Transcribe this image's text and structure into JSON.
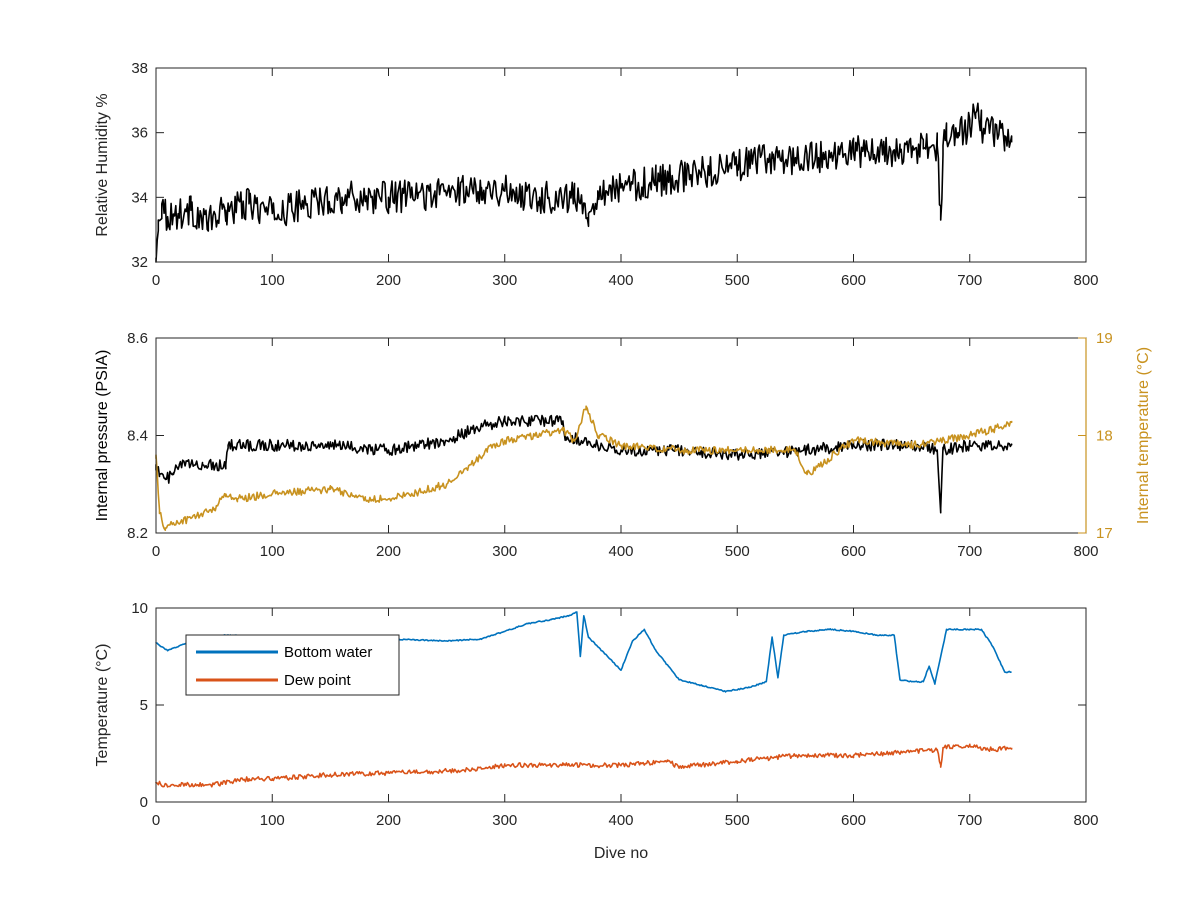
{
  "figure": {
    "xlabel": "Dive no"
  },
  "chart_data": [
    {
      "type": "line",
      "xlim": [
        0,
        800
      ],
      "xticks": [
        0,
        100,
        200,
        300,
        400,
        500,
        600,
        700,
        800
      ],
      "ylabel": "Relative Humidity %",
      "ylim": [
        32,
        38
      ],
      "yticks": [
        32,
        34,
        36,
        38
      ],
      "legend": "none",
      "series": [
        {
          "color": "#000000",
          "noise": 0.5,
          "x": [
            0,
            2,
            5,
            10,
            20,
            30,
            45,
            60,
            80,
            100,
            130,
            160,
            200,
            240,
            280,
            300,
            330,
            360,
            372,
            380,
            400,
            430,
            460,
            500,
            530,
            560,
            600,
            640,
            660,
            672,
            675,
            677,
            680,
            690,
            700,
            705,
            710,
            720,
            730,
            736
          ],
          "y": [
            32.0,
            33.3,
            33.8,
            33.4,
            33.5,
            33.6,
            33.2,
            33.6,
            33.8,
            33.5,
            33.8,
            34.0,
            34.0,
            34.1,
            34.3,
            34.2,
            34.0,
            34.0,
            33.5,
            34.2,
            34.3,
            34.5,
            34.7,
            35.0,
            35.2,
            35.2,
            35.4,
            35.4,
            35.5,
            35.6,
            33.3,
            35.6,
            35.8,
            36.0,
            36.2,
            36.6,
            36.2,
            36.0,
            35.9,
            35.7
          ]
        }
      ]
    },
    {
      "type": "line",
      "xlim": [
        0,
        800
      ],
      "xticks": [
        0,
        100,
        200,
        300,
        400,
        500,
        600,
        700,
        800
      ],
      "ylabel": "Internal pressure (PSIA)",
      "ylim": [
        8.2,
        8.6
      ],
      "yticks": [
        8.2,
        8.4,
        8.6
      ],
      "y2label": "Internal temperature (°C)",
      "y2lim": [
        17,
        19
      ],
      "y2ticks": [
        17,
        18,
        19
      ],
      "legend": "none",
      "series": [
        {
          "axis": "left",
          "color": "#000000",
          "noise": 0.012,
          "x": [
            0,
            3,
            8,
            15,
            20,
            40,
            45,
            60,
            62,
            100,
            150,
            200,
            250,
            280,
            300,
            350,
            352,
            380,
            400,
            450,
            500,
            560,
            600,
            650,
            672,
            675,
            677,
            700,
            736
          ],
          "y": [
            8.34,
            8.32,
            8.31,
            8.32,
            8.34,
            8.34,
            8.34,
            8.34,
            8.38,
            8.38,
            8.38,
            8.37,
            8.39,
            8.42,
            8.43,
            8.43,
            8.4,
            8.38,
            8.37,
            8.37,
            8.36,
            8.37,
            8.38,
            8.38,
            8.37,
            8.25,
            8.37,
            8.38,
            8.38
          ]
        },
        {
          "axis": "right",
          "color": "#c8921f",
          "noise": 0.04,
          "x": [
            0,
            3,
            8,
            15,
            30,
            50,
            60,
            70,
            100,
            150,
            180,
            200,
            220,
            250,
            270,
            285,
            300,
            350,
            360,
            370,
            380,
            400,
            450,
            500,
            550,
            560,
            600,
            650,
            700,
            730,
            736
          ],
          "y": [
            17.8,
            17.2,
            17.05,
            17.1,
            17.15,
            17.25,
            17.4,
            17.35,
            17.4,
            17.45,
            17.35,
            17.35,
            17.4,
            17.5,
            17.7,
            17.85,
            17.95,
            18.05,
            17.95,
            18.3,
            18.0,
            17.9,
            17.85,
            17.85,
            17.85,
            17.6,
            17.95,
            17.9,
            18.0,
            18.1,
            18.15
          ]
        }
      ]
    },
    {
      "type": "line",
      "xlim": [
        0,
        800
      ],
      "xticks": [
        0,
        100,
        200,
        300,
        400,
        500,
        600,
        700,
        800
      ],
      "xlabel": "Dive no",
      "ylabel": "Temperature (°C)",
      "ylim": [
        0,
        10
      ],
      "yticks": [
        0,
        5,
        10
      ],
      "legend": "top-left",
      "series": [
        {
          "name": "Bottom water",
          "color": "#0072bd",
          "noise": 0.03,
          "x": [
            0,
            10,
            30,
            60,
            100,
            150,
            200,
            250,
            280,
            300,
            320,
            340,
            355,
            362,
            365,
            368,
            372,
            380,
            400,
            410,
            420,
            430,
            450,
            470,
            490,
            510,
            525,
            530,
            535,
            540,
            560,
            580,
            600,
            620,
            635,
            640,
            650,
            660,
            665,
            670,
            680,
            700,
            710,
            720,
            730,
            736
          ],
          "y": [
            8.2,
            7.8,
            8.3,
            8.6,
            8.5,
            8.4,
            8.4,
            8.3,
            8.4,
            8.8,
            9.2,
            9.4,
            9.6,
            9.8,
            7.5,
            9.6,
            8.5,
            8.0,
            6.8,
            8.3,
            8.9,
            7.8,
            6.3,
            6.0,
            5.7,
            5.9,
            6.2,
            8.5,
            6.4,
            8.6,
            8.8,
            8.9,
            8.8,
            8.6,
            8.6,
            6.3,
            6.2,
            6.2,
            7.0,
            6.1,
            8.9,
            8.9,
            8.9,
            8.0,
            6.7,
            6.7
          ]
        },
        {
          "name": "Dew point",
          "color": "#d95319",
          "noise": 0.12,
          "x": [
            0,
            10,
            20,
            50,
            80,
            100,
            150,
            200,
            250,
            280,
            300,
            350,
            400,
            440,
            450,
            500,
            550,
            600,
            650,
            672,
            675,
            677,
            700,
            720,
            736
          ],
          "y": [
            1.0,
            0.8,
            0.9,
            0.9,
            1.2,
            1.2,
            1.4,
            1.5,
            1.6,
            1.7,
            1.9,
            1.9,
            1.9,
            2.1,
            1.8,
            2.1,
            2.4,
            2.4,
            2.6,
            2.7,
            1.8,
            2.8,
            2.9,
            2.7,
            2.8
          ]
        }
      ]
    }
  ]
}
